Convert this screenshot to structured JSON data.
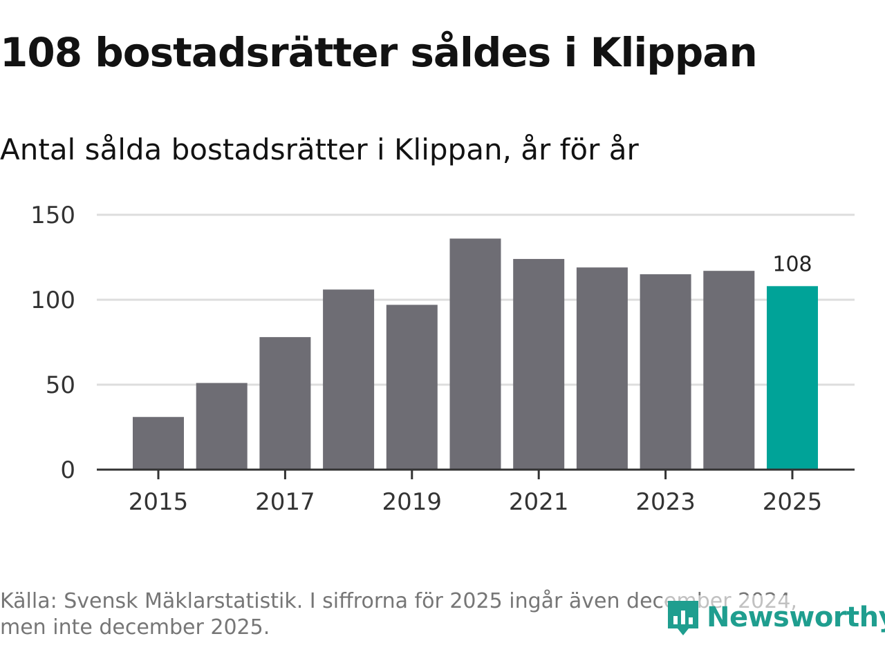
{
  "title": "108 bostadsrätter såldes i Klippan",
  "subtitle": "Antal sålda bostadsrätter i Klippan, år för år",
  "chart_data": {
    "type": "bar",
    "categories": [
      "2015",
      "2016",
      "2017",
      "2018",
      "2019",
      "2020",
      "2021",
      "2022",
      "2023",
      "2024",
      "2025"
    ],
    "values": [
      31,
      51,
      78,
      106,
      97,
      136,
      124,
      119,
      115,
      117,
      108
    ],
    "highlight_index": 10,
    "highlight_label": "108",
    "x_tick_labels": [
      "2015",
      "2017",
      "2019",
      "2021",
      "2023",
      "2025"
    ],
    "y_ticks": [
      0,
      50,
      100,
      150
    ],
    "ylim": [
      0,
      150
    ],
    "xlabel": "",
    "ylabel": "",
    "grid": true,
    "colors": {
      "bar": "#6e6d74",
      "highlight": "#00a398",
      "grid": "#dddddd",
      "axis": "#333333"
    }
  },
  "footer": {
    "line1": "Källa: Svensk Mäklarstatistik. I siffrorna för 2025 ingår även december 2024,",
    "line2": "men inte december 2025."
  },
  "logo": {
    "text": "Newsworthy",
    "icon": "newsworthy-logo-icon",
    "color": "#1f9e8f"
  }
}
